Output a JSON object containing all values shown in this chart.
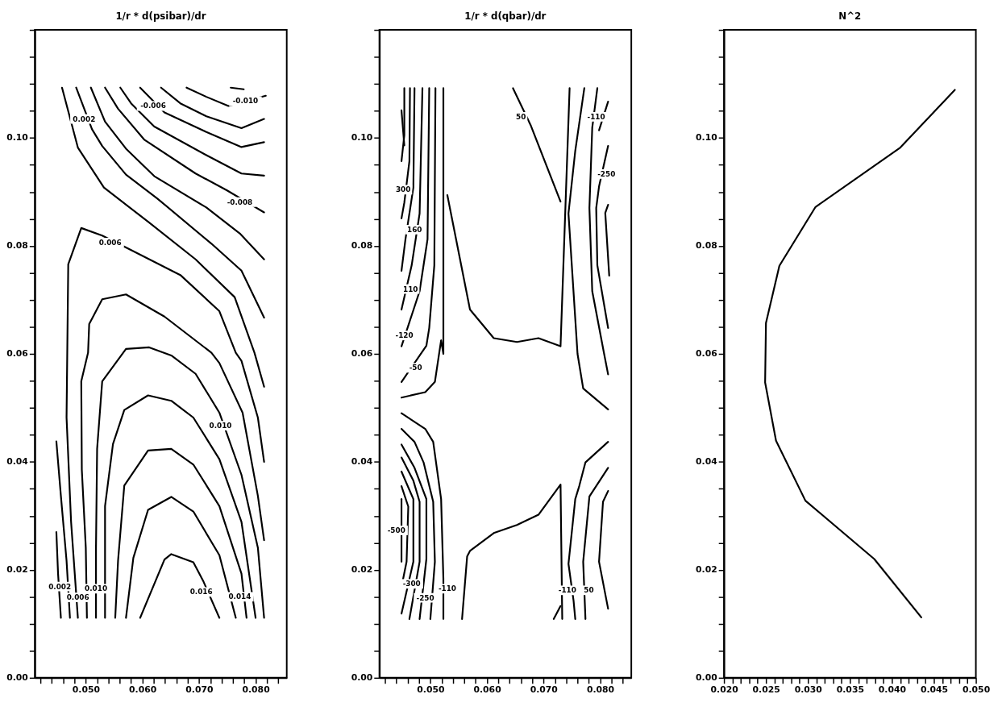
{
  "chart_data": [
    {
      "type": "line",
      "title": "1/r * d(psibar)/dr",
      "xlim": [
        0.041,
        0.0855
      ],
      "ylim": [
        0,
        0.12
      ],
      "xticks": [
        {
          "value": 0.042,
          "label": null
        },
        {
          "value": 0.044,
          "label": null
        },
        {
          "value": 0.046,
          "label": null
        },
        {
          "value": 0.048,
          "label": null
        },
        {
          "value": 0.05,
          "label": "0.050"
        },
        {
          "value": 0.052,
          "label": null
        },
        {
          "value": 0.054,
          "label": null
        },
        {
          "value": 0.056,
          "label": null
        },
        {
          "value": 0.058,
          "label": null
        },
        {
          "value": 0.06,
          "label": "0.060"
        },
        {
          "value": 0.062,
          "label": null
        },
        {
          "value": 0.064,
          "label": null
        },
        {
          "value": 0.066,
          "label": null
        },
        {
          "value": 0.068,
          "label": null
        },
        {
          "value": 0.07,
          "label": "0.070"
        },
        {
          "value": 0.072,
          "label": null
        },
        {
          "value": 0.074,
          "label": null
        },
        {
          "value": 0.076,
          "label": null
        },
        {
          "value": 0.078,
          "label": null
        },
        {
          "value": 0.08,
          "label": "0.080"
        },
        {
          "value": 0.082,
          "label": null
        },
        {
          "value": 0.084,
          "label": null
        }
      ],
      "yticks": [
        {
          "value": 0,
          "label": "0.00"
        },
        {
          "value": 0.005,
          "label": null
        },
        {
          "value": 0.01,
          "label": null
        },
        {
          "value": 0.015,
          "label": null
        },
        {
          "value": 0.02,
          "label": "0.02"
        },
        {
          "value": 0.025,
          "label": null
        },
        {
          "value": 0.03,
          "label": null
        },
        {
          "value": 0.035,
          "label": null
        },
        {
          "value": 0.04,
          "label": "0.04"
        },
        {
          "value": 0.045,
          "label": null
        },
        {
          "value": 0.05,
          "label": null
        },
        {
          "value": 0.055,
          "label": null
        },
        {
          "value": 0.06,
          "label": "0.06"
        },
        {
          "value": 0.065,
          "label": null
        },
        {
          "value": 0.07,
          "label": null
        },
        {
          "value": 0.075,
          "label": null
        },
        {
          "value": 0.08,
          "label": "0.08"
        },
        {
          "value": 0.085,
          "label": null
        },
        {
          "value": 0.09,
          "label": null
        },
        {
          "value": 0.095,
          "label": null
        },
        {
          "value": 0.1,
          "label": "0.10"
        },
        {
          "value": 0.105,
          "label": null
        },
        {
          "value": 0.11,
          "label": null
        },
        {
          "value": 0.115,
          "label": null
        },
        {
          "value": 0.12,
          "label": null
        }
      ],
      "series": [
        {
          "color": "#000000",
          "x": [
            0.0756,
            0.0779
          ],
          "values": [
            0.1093,
            0.109
          ]
        },
        {
          "color": "#000000",
          "x": [
            0.0678,
            0.0713,
            0.0752,
            0.0818
          ],
          "values": [
            0.1093,
            0.1076,
            0.1059,
            0.1078
          ]
        },
        {
          "color": "#000000",
          "x": [
            0.0633,
            0.0667,
            0.0713,
            0.0775,
            0.0815
          ],
          "values": [
            0.1093,
            0.1064,
            0.104,
            0.1018,
            0.1035
          ]
        },
        {
          "color": "#000000",
          "x": [
            0.0596,
            0.0639,
            0.0713,
            0.0775,
            0.0815
          ],
          "values": [
            0.1093,
            0.1047,
            0.1011,
            0.0983,
            0.0992
          ]
        },
        {
          "color": "#000000",
          "x": [
            0.0561,
            0.058,
            0.0621,
            0.0713,
            0.0775,
            0.0815
          ],
          "values": [
            0.1093,
            0.1064,
            0.1021,
            0.0968,
            0.0934,
            0.093
          ]
        },
        {
          "color": "#000000",
          "x": [
            0.0534,
            0.0557,
            0.0603,
            0.0694,
            0.0749,
            0.0815
          ],
          "values": [
            0.1093,
            0.1054,
            0.0997,
            0.0934,
            0.0903,
            0.0862
          ]
        },
        {
          "color": "#000000",
          "x": [
            0.0509,
            0.0534,
            0.0571,
            0.0621,
            0.0713,
            0.0772,
            0.0815
          ],
          "values": [
            0.1093,
            0.103,
            0.098,
            0.0929,
            0.0871,
            0.0823,
            0.0775
          ]
        },
        {
          "color": "#000000",
          "x": [
            0.0483,
            0.0511,
            0.0529,
            0.0571,
            0.0626,
            0.0722,
            0.0775,
            0.0815
          ],
          "values": [
            0.1093,
            0.1016,
            0.0985,
            0.0932,
            0.0888,
            0.0804,
            0.0754,
            0.0667
          ]
        },
        {
          "color": "#000000",
          "x": [
            0.0458,
            0.0486,
            0.0532,
            0.0612,
            0.0694,
            0.0763,
            0.0798,
            0.0815
          ],
          "values": [
            0.1093,
            0.0982,
            0.0908,
            0.0843,
            0.0775,
            0.0705,
            0.0602,
            0.0539
          ]
        },
        {
          "color": "#000000",
          "x": [
            0.0486,
            0.0474,
            0.0466,
            0.0469,
            0.0492,
            0.0529,
            0.0571,
            0.0667,
            0.0736,
            0.0765,
            0.0775,
            0.0804,
            0.0815
          ],
          "values": [
            0.0111,
            0.0289,
            0.0482,
            0.0766,
            0.0833,
            0.0819,
            0.0797,
            0.0746,
            0.0679,
            0.0602,
            0.0587,
            0.0482,
            0.04
          ]
        },
        {
          "color": "#000000",
          "x": [
            0.0448,
            0.0451,
            0.0456
          ],
          "values": [
            0.027,
            0.0193,
            0.0111
          ]
        },
        {
          "color": "#000000",
          "x": [
            0.0448,
            0.0456,
            0.0466,
            0.0472
          ],
          "values": [
            0.0438,
            0.0337,
            0.0217,
            0.0111
          ]
        },
        {
          "color": "#000000",
          "x": [
            0.0502,
            0.05,
            0.0493,
            0.0492,
            0.0504,
            0.0506,
            0.0529,
            0.0571,
            0.0639,
            0.0722,
            0.0736,
            0.0777,
            0.0804,
            0.0815
          ],
          "values": [
            0.0111,
            0.0241,
            0.0385,
            0.0549,
            0.0602,
            0.0655,
            0.0701,
            0.071,
            0.0669,
            0.0602,
            0.0583,
            0.0491,
            0.0337,
            0.0255
          ]
        },
        {
          "color": "#000000",
          "x": [
            0.0518,
            0.0518,
            0.052,
            0.0529,
            0.0571,
            0.0612,
            0.0651,
            0.0694,
            0.0736,
            0.0775,
            0.0804,
            0.0815
          ],
          "values": [
            0.0111,
            0.0241,
            0.0424,
            0.0549,
            0.0609,
            0.0612,
            0.0597,
            0.0563,
            0.0491,
            0.0376,
            0.0241,
            0.0111
          ]
        },
        {
          "color": "#000000",
          "x": [
            0.0534,
            0.0534,
            0.0548,
            0.0568,
            0.061,
            0.0651,
            0.069,
            0.0736,
            0.0775,
            0.08
          ],
          "values": [
            0.0111,
            0.0318,
            0.0433,
            0.0496,
            0.0523,
            0.0513,
            0.0482,
            0.0405,
            0.0289,
            0.0111
          ]
        },
        {
          "color": "#000000",
          "x": [
            0.0552,
            0.0557,
            0.0568,
            0.061,
            0.0651,
            0.069,
            0.0736,
            0.0775,
            0.0784
          ],
          "values": [
            0.0111,
            0.0217,
            0.0356,
            0.0421,
            0.0424,
            0.0395,
            0.0318,
            0.0193,
            0.0111
          ]
        },
        {
          "color": "#000000",
          "x": [
            0.0571,
            0.0584,
            0.061,
            0.0651,
            0.069,
            0.0736,
            0.0765
          ],
          "values": [
            0.0111,
            0.0222,
            0.0311,
            0.0335,
            0.0308,
            0.0227,
            0.0111
          ]
        },
        {
          "color": "#000000",
          "x": [
            0.0596,
            0.0639,
            0.0651,
            0.069,
            0.0708,
            0.0736
          ],
          "values": [
            0.0111,
            0.0219,
            0.0229,
            0.0214,
            0.0178,
            0.0111
          ]
        }
      ],
      "annotations": [
        {
          "text": "-0.010",
          "x": 0.0782,
          "y": 0.1068
        },
        {
          "text": "-0.006",
          "x": 0.0619,
          "y": 0.1059
        },
        {
          "text": "0.002",
          "x": 0.0497,
          "y": 0.1035
        },
        {
          "text": "-0.008",
          "x": 0.0772,
          "y": 0.0881
        },
        {
          "text": "0.006",
          "x": 0.0543,
          "y": 0.0806
        },
        {
          "text": "0.010",
          "x": 0.0738,
          "y": 0.0467
        },
        {
          "text": "0.002",
          "x": 0.0454,
          "y": 0.0169
        },
        {
          "text": "0.006",
          "x": 0.0486,
          "y": 0.0149
        },
        {
          "text": "0.010",
          "x": 0.0518,
          "y": 0.0165
        },
        {
          "text": "0.016",
          "x": 0.0704,
          "y": 0.0159
        },
        {
          "text": "0.014",
          "x": 0.0772,
          "y": 0.015
        }
      ]
    },
    {
      "type": "line",
      "title": "1/r * d(qbar)/dr",
      "xlim": [
        0.041,
        0.0855
      ],
      "ylim": [
        0,
        0.12
      ],
      "xticks": [
        {
          "value": 0.042,
          "label": null
        },
        {
          "value": 0.044,
          "label": null
        },
        {
          "value": 0.046,
          "label": null
        },
        {
          "value": 0.048,
          "label": null
        },
        {
          "value": 0.05,
          "label": "0.050"
        },
        {
          "value": 0.052,
          "label": null
        },
        {
          "value": 0.054,
          "label": null
        },
        {
          "value": 0.056,
          "label": null
        },
        {
          "value": 0.058,
          "label": null
        },
        {
          "value": 0.06,
          "label": "0.060"
        },
        {
          "value": 0.062,
          "label": null
        },
        {
          "value": 0.064,
          "label": null
        },
        {
          "value": 0.066,
          "label": null
        },
        {
          "value": 0.068,
          "label": null
        },
        {
          "value": 0.07,
          "label": "0.070"
        },
        {
          "value": 0.072,
          "label": null
        },
        {
          "value": 0.074,
          "label": null
        },
        {
          "value": 0.076,
          "label": null
        },
        {
          "value": 0.078,
          "label": null
        },
        {
          "value": 0.08,
          "label": "0.080"
        },
        {
          "value": 0.082,
          "label": null
        },
        {
          "value": 0.084,
          "label": null
        }
      ],
      "yticks": [
        {
          "value": 0,
          "label": "0.00"
        },
        {
          "value": 0.005,
          "label": null
        },
        {
          "value": 0.01,
          "label": null
        },
        {
          "value": 0.015,
          "label": null
        },
        {
          "value": 0.02,
          "label": "0.02"
        },
        {
          "value": 0.025,
          "label": null
        },
        {
          "value": 0.03,
          "label": null
        },
        {
          "value": 0.035,
          "label": null
        },
        {
          "value": 0.04,
          "label": "0.04"
        },
        {
          "value": 0.045,
          "label": null
        },
        {
          "value": 0.05,
          "label": null
        },
        {
          "value": 0.055,
          "label": null
        },
        {
          "value": 0.06,
          "label": "0.06"
        },
        {
          "value": 0.065,
          "label": null
        },
        {
          "value": 0.07,
          "label": null
        },
        {
          "value": 0.075,
          "label": null
        },
        {
          "value": 0.08,
          "label": "0.08"
        },
        {
          "value": 0.085,
          "label": null
        },
        {
          "value": 0.09,
          "label": null
        },
        {
          "value": 0.095,
          "label": null
        },
        {
          "value": 0.1,
          "label": "0.10"
        },
        {
          "value": 0.105,
          "label": null
        },
        {
          "value": 0.11,
          "label": null
        },
        {
          "value": 0.115,
          "label": null
        },
        {
          "value": 0.12,
          "label": null
        }
      ],
      "series": [
        {
          "color": "#000000",
          "x": [
            0.0523,
            0.0523,
            0.0519,
            0.0508,
            0.0491,
            0.0449
          ],
          "values": [
            0.1092,
            0.06,
            0.0625,
            0.0548,
            0.0529,
            0.0519
          ]
        },
        {
          "color": "#000000",
          "x": [
            0.0509,
            0.0507,
            0.0498,
            0.0493,
            0.0449
          ],
          "values": [
            0.1092,
            0.0764,
            0.0648,
            0.0615,
            0.0548
          ]
        },
        {
          "color": "#000000",
          "x": [
            0.0498,
            0.0495,
            0.0481,
            0.0449
          ],
          "values": [
            0.1092,
            0.0812,
            0.0716,
            0.0614
          ]
        },
        {
          "color": "#000000",
          "x": [
            0.0486,
            0.0481,
            0.0467,
            0.0449
          ],
          "values": [
            0.1092,
            0.086,
            0.0764,
            0.0682
          ]
        },
        {
          "color": "#000000",
          "x": [
            0.0472,
            0.047,
            0.0456,
            0.0449
          ],
          "values": [
            0.1092,
            0.0908,
            0.0812,
            0.0754
          ]
        },
        {
          "color": "#000000",
          "x": [
            0.0464,
            0.0463,
            0.0454,
            0.0449
          ],
          "values": [
            0.1092,
            0.0957,
            0.088,
            0.0851
          ]
        },
        {
          "color": "#000000",
          "x": [
            0.0454,
            0.0454,
            0.0449
          ],
          "values": [
            0.1092,
            0.1005,
            0.0957
          ]
        },
        {
          "color": "#000000",
          "x": [
            0.0449,
            0.0454
          ],
          "values": [
            0.1051,
            0.0986
          ]
        },
        {
          "color": "#000000",
          "x": [
            0.053,
            0.057,
            0.0612,
            0.0653,
            0.0691,
            0.073,
            0.0746
          ],
          "values": [
            0.0894,
            0.0682,
            0.0629,
            0.0622,
            0.0629,
            0.0614,
            0.1092
          ]
        },
        {
          "color": "#000000",
          "x": [
            0.0646,
            0.0677,
            0.073
          ],
          "values": [
            0.1092,
            0.1024,
            0.0882
          ]
        },
        {
          "color": "#000000",
          "x": [
            0.0772,
            0.0756,
            0.0744,
            0.076,
            0.077,
            0.0814
          ],
          "values": [
            0.1092,
            0.0976,
            0.086,
            0.06,
            0.0536,
            0.0497
          ]
        },
        {
          "color": "#000000",
          "x": [
            0.0795,
            0.0786,
            0.0781,
            0.0786,
            0.0807,
            0.0814
          ],
          "values": [
            0.1092,
            0.1019,
            0.087,
            0.0716,
            0.06,
            0.0562
          ]
        },
        {
          "color": "#000000",
          "x": [
            0.0814,
            0.0798
          ],
          "values": [
            0.1067,
            0.1014
          ]
        },
        {
          "color": "#000000",
          "x": [
            0.0814,
            0.0798,
            0.0793,
            0.0795,
            0.0814
          ],
          "values": [
            0.0985,
            0.091,
            0.087,
            0.0764,
            0.0648
          ]
        },
        {
          "color": "#000000",
          "x": [
            0.0814,
            0.0809,
            0.0816
          ],
          "values": [
            0.0876,
            0.0861,
            0.0745
          ]
        },
        {
          "color": "#000000",
          "x": [
            0.0449,
            0.0491,
            0.0505,
            0.0519,
            0.0523,
            0.0523
          ],
          "values": [
            0.049,
            0.0461,
            0.0437,
            0.0331,
            0.0184,
            0.0109
          ]
        },
        {
          "color": "#000000",
          "x": [
            0.0449,
            0.0472,
            0.0488,
            0.0505,
            0.0508,
            0.05
          ],
          "values": [
            0.0461,
            0.0437,
            0.0399,
            0.0326,
            0.0215,
            0.0109
          ]
        },
        {
          "color": "#000000",
          "x": [
            0.0449,
            0.0472,
            0.0493,
            0.0493,
            0.0481
          ],
          "values": [
            0.0432,
            0.0389,
            0.0331,
            0.022,
            0.0109
          ]
        },
        {
          "color": "#000000",
          "x": [
            0.0449,
            0.047,
            0.0481,
            0.0481,
            0.0463
          ],
          "values": [
            0.0408,
            0.0365,
            0.0326,
            0.0215,
            0.0109
          ]
        },
        {
          "color": "#000000",
          "x": [
            0.0449,
            0.047,
            0.047,
            0.0449
          ],
          "values": [
            0.0382,
            0.0331,
            0.0215,
            0.0119
          ]
        },
        {
          "color": "#000000",
          "x": [
            0.0449,
            0.0461,
            0.0458,
            0.0449
          ],
          "values": [
            0.0355,
            0.0317,
            0.0215,
            0.0168
          ]
        },
        {
          "color": "#000000",
          "x": [
            0.0449,
            0.0449
          ],
          "values": [
            0.0331,
            0.0215
          ]
        },
        {
          "color": "#000000",
          "x": [
            0.0556,
            0.0565,
            0.057,
            0.0612,
            0.0653,
            0.0691,
            0.073,
            0.0733
          ],
          "values": [
            0.0109,
            0.0225,
            0.0235,
            0.0268,
            0.0283,
            0.0302,
            0.0358,
            0.0109
          ]
        },
        {
          "color": "#000000",
          "x": [
            0.0718,
            0.073
          ],
          "values": [
            0.0109,
            0.0133
          ]
        },
        {
          "color": "#000000",
          "x": [
            0.0814,
            0.0774,
            0.0763,
            0.0756,
            0.0744,
            0.0753,
            0.0756
          ],
          "values": [
            0.0437,
            0.0399,
            0.0355,
            0.0331,
            0.0211,
            0.0143,
            0.0109
          ]
        },
        {
          "color": "#000000",
          "x": [
            0.0814,
            0.0781,
            0.077,
            0.0774
          ],
          "values": [
            0.0389,
            0.0336,
            0.0215,
            0.0109
          ]
        },
        {
          "color": "#000000",
          "x": [
            0.0814,
            0.0805,
            0.0798,
            0.0814
          ],
          "values": [
            0.0346,
            0.0326,
            0.0215,
            0.0128
          ]
        }
      ],
      "annotations": [
        {
          "text": "50",
          "x": 0.066,
          "y": 0.1039
        },
        {
          "text": "-110",
          "x": 0.0793,
          "y": 0.1039
        },
        {
          "text": "-250",
          "x": 0.0811,
          "y": 0.0933
        },
        {
          "text": "300",
          "x": 0.0452,
          "y": 0.0904
        },
        {
          "text": "160",
          "x": 0.0472,
          "y": 0.083
        },
        {
          "text": "110",
          "x": 0.0465,
          "y": 0.072
        },
        {
          "text": "-120",
          "x": 0.0454,
          "y": 0.0634
        },
        {
          "text": "-50",
          "x": 0.0474,
          "y": 0.0574
        },
        {
          "text": "-500",
          "x": 0.044,
          "y": 0.0273
        },
        {
          "text": "-300",
          "x": 0.0467,
          "y": 0.0174
        },
        {
          "text": "-250",
          "x": 0.0491,
          "y": 0.0148
        },
        {
          "text": "-110",
          "x": 0.053,
          "y": 0.0165
        },
        {
          "text": "-110",
          "x": 0.0742,
          "y": 0.0162
        },
        {
          "text": "50",
          "x": 0.078,
          "y": 0.0162
        }
      ]
    },
    {
      "type": "line",
      "title": "N^2",
      "xlim": [
        0.02,
        0.05
      ],
      "ylim": [
        0,
        0.12
      ],
      "xticks": [
        {
          "value": 0.02,
          "label": "0.020"
        },
        {
          "value": 0.021,
          "label": null
        },
        {
          "value": 0.022,
          "label": null
        },
        {
          "value": 0.023,
          "label": null
        },
        {
          "value": 0.024,
          "label": null
        },
        {
          "value": 0.025,
          "label": "0.025"
        },
        {
          "value": 0.026,
          "label": null
        },
        {
          "value": 0.027,
          "label": null
        },
        {
          "value": 0.028,
          "label": null
        },
        {
          "value": 0.029,
          "label": null
        },
        {
          "value": 0.03,
          "label": "0.030"
        },
        {
          "value": 0.031,
          "label": null
        },
        {
          "value": 0.032,
          "label": null
        },
        {
          "value": 0.033,
          "label": null
        },
        {
          "value": 0.034,
          "label": null
        },
        {
          "value": 0.035,
          "label": "0.035"
        },
        {
          "value": 0.036,
          "label": null
        },
        {
          "value": 0.037,
          "label": null
        },
        {
          "value": 0.038,
          "label": null
        },
        {
          "value": 0.039,
          "label": null
        },
        {
          "value": 0.04,
          "label": "0.040"
        },
        {
          "value": 0.041,
          "label": null
        },
        {
          "value": 0.042,
          "label": null
        },
        {
          "value": 0.043,
          "label": null
        },
        {
          "value": 0.044,
          "label": null
        },
        {
          "value": 0.045,
          "label": "0.045"
        },
        {
          "value": 0.046,
          "label": null
        },
        {
          "value": 0.047,
          "label": null
        },
        {
          "value": 0.048,
          "label": null
        },
        {
          "value": 0.049,
          "label": null
        },
        {
          "value": 0.05,
          "label": "0.050"
        }
      ],
      "yticks": [
        {
          "value": 0,
          "label": "0.00"
        },
        {
          "value": 0.005,
          "label": null
        },
        {
          "value": 0.01,
          "label": null
        },
        {
          "value": 0.015,
          "label": null
        },
        {
          "value": 0.02,
          "label": "0.02"
        },
        {
          "value": 0.025,
          "label": null
        },
        {
          "value": 0.03,
          "label": null
        },
        {
          "value": 0.035,
          "label": null
        },
        {
          "value": 0.04,
          "label": "0.04"
        },
        {
          "value": 0.045,
          "label": null
        },
        {
          "value": 0.05,
          "label": null
        },
        {
          "value": 0.055,
          "label": null
        },
        {
          "value": 0.06,
          "label": "0.06"
        },
        {
          "value": 0.065,
          "label": null
        },
        {
          "value": 0.07,
          "label": null
        },
        {
          "value": 0.075,
          "label": null
        },
        {
          "value": 0.08,
          "label": "0.08"
        },
        {
          "value": 0.085,
          "label": null
        },
        {
          "value": 0.09,
          "label": null
        },
        {
          "value": 0.095,
          "label": null
        },
        {
          "value": 0.1,
          "label": "0.10"
        },
        {
          "value": 0.105,
          "label": null
        },
        {
          "value": 0.11,
          "label": null
        },
        {
          "value": 0.115,
          "label": null
        },
        {
          "value": 0.12,
          "label": null
        }
      ],
      "series": [
        {
          "color": "#000000",
          "x": [
            0.0435,
            0.0379,
            0.0297,
            0.0262,
            0.0249,
            0.025,
            0.0266,
            0.0309,
            0.041,
            0.0475
          ],
          "values": [
            0.0112,
            0.022,
            0.0328,
            0.0439,
            0.0547,
            0.0657,
            0.0763,
            0.0872,
            0.0982,
            0.1089
          ]
        }
      ]
    }
  ]
}
